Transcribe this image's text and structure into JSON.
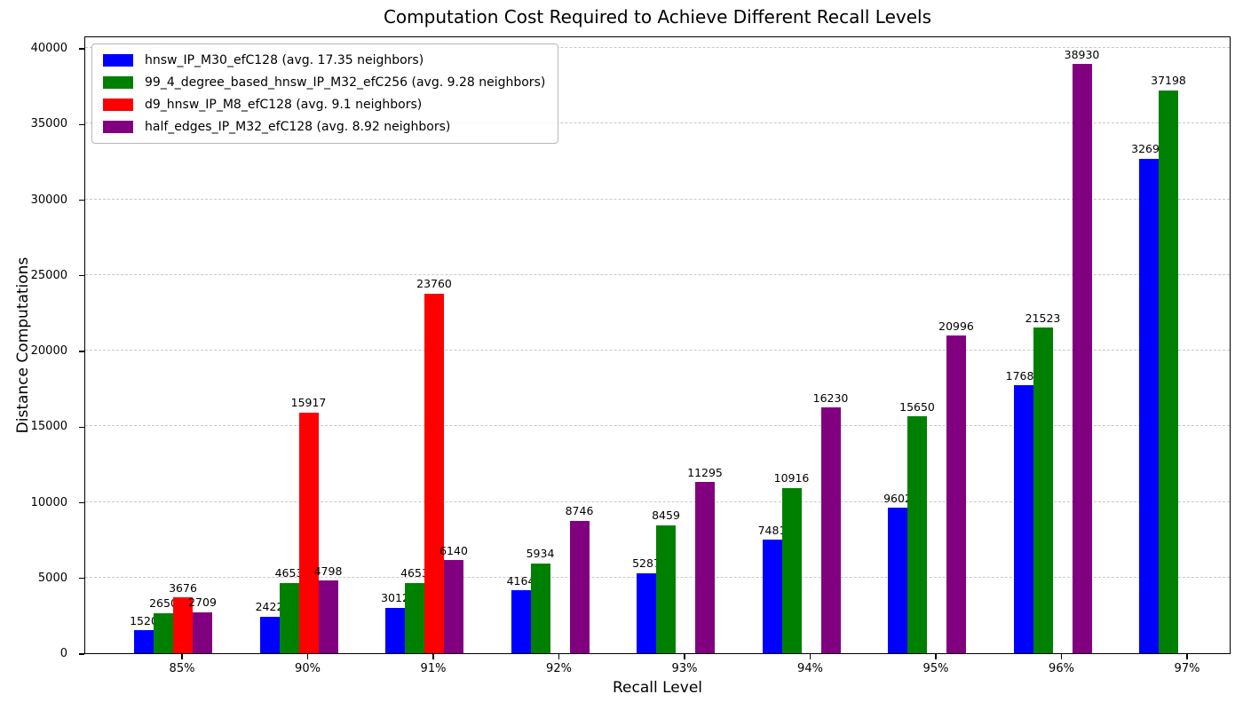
{
  "chart_data": {
    "type": "bar",
    "title": "Computation Cost Required to Achieve Different Recall Levels",
    "xlabel": "Recall Level",
    "ylabel": "Distance Computations",
    "categories": [
      "85%",
      "90%",
      "91%",
      "92%",
      "93%",
      "94%",
      "95%",
      "96%",
      "97%"
    ],
    "series": [
      {
        "name": "hnsw_IP_M30_efC128 (avg. 17.35 neighbors)",
        "color": "#0000ff",
        "values": [
          1520,
          2422,
          3012,
          4164,
          5287,
          7481,
          9602,
          17689,
          32692
        ]
      },
      {
        "name": "99_4_degree_based_hnsw_IP_M32_efC256 (avg. 9.28 neighbors)",
        "color": "#008000",
        "values": [
          2650,
          4653,
          4653,
          5934,
          8459,
          10916,
          15650,
          21523,
          37198
        ]
      },
      {
        "name": "d9_hnsw_IP_M8_efC128 (avg. 9.1 neighbors)",
        "color": "#ff0000",
        "values": [
          3676,
          15917,
          23760,
          null,
          null,
          null,
          null,
          null,
          null
        ]
      },
      {
        "name": "half_edges_IP_M32_efC128 (avg. 8.92 neighbors)",
        "color": "#800080",
        "values": [
          2709,
          4798,
          6140,
          8746,
          11295,
          16230,
          20996,
          38930,
          null
        ]
      }
    ],
    "ylim": [
      0,
      40000
    ],
    "yticks": [
      0,
      5000,
      10000,
      15000,
      20000,
      25000,
      30000,
      35000,
      40000
    ],
    "grid": "horizontal-dashed",
    "legend_position": "upper-left",
    "bar_value_labels": true
  }
}
